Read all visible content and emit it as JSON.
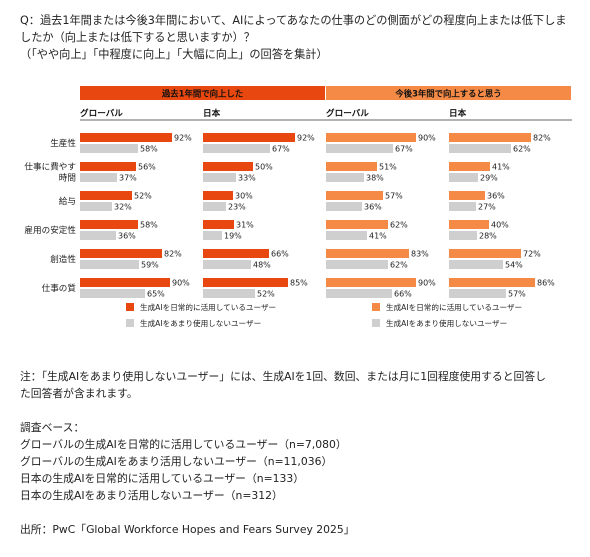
{
  "question": {
    "line1": "Q：過去1年間または今後3年間において、AIによってあなたの仕事のどの側面がどの程度向上または低下しま",
    "line2": "したか（向上または低下すると思いますか）？",
    "line3": "（「やや向上」「中程度に向上」「大幅に向上」の回答を集計）"
  },
  "colors": {
    "period_header_past": "#e8480f",
    "period_header_future": "#f58a46",
    "past_daily": "#e8480f",
    "future_daily": "#f58a46",
    "rare": "#cfcfcf"
  },
  "chart_data": {
    "type": "bar",
    "orientation": "horizontal",
    "categories": [
      "生産性",
      "仕事に費やす時間",
      "給与",
      "雇用の安定性",
      "創造性",
      "仕事の質"
    ],
    "category_labels": [
      [
        "生産性"
      ],
      [
        "仕事に費やす",
        "時間"
      ],
      [
        "給与"
      ],
      [
        "雇用の安定性"
      ],
      [
        "創造性"
      ],
      [
        "仕事の質"
      ]
    ],
    "value_unit": "%",
    "xlim": [
      0,
      100
    ],
    "periods": [
      {
        "label": "過去1年間で向上した",
        "panels": [
          {
            "region": "グローバル",
            "series": [
              {
                "name": "生成AIを日常的に活用しているユーザー",
                "values": [
                  92,
                  56,
                  52,
                  58,
                  82,
                  90
                ]
              },
              {
                "name": "生成AIをあまり使用しないユーザー",
                "values": [
                  58,
                  37,
                  32,
                  36,
                  59,
                  65
                ]
              }
            ]
          },
          {
            "region": "日本",
            "series": [
              {
                "name": "生成AIを日常的に活用しているユーザー",
                "values": [
                  92,
                  50,
                  30,
                  31,
                  66,
                  85
                ]
              },
              {
                "name": "生成AIをあまり使用しないユーザー",
                "values": [
                  67,
                  33,
                  23,
                  19,
                  48,
                  52
                ]
              }
            ]
          }
        ],
        "legend": [
          "生成AIを日常的に活用しているユーザー",
          "生成AIをあまり使用しないユーザー"
        ]
      },
      {
        "label": "今後3年間で向上すると思う",
        "panels": [
          {
            "region": "グローバル",
            "series": [
              {
                "name": "生成AIを日常的に活用しているユーザー",
                "values": [
                  90,
                  51,
                  57,
                  62,
                  83,
                  90
                ]
              },
              {
                "name": "生成AIをあまり使用しないユーザー",
                "values": [
                  67,
                  38,
                  36,
                  41,
                  62,
                  66
                ]
              }
            ]
          },
          {
            "region": "日本",
            "series": [
              {
                "name": "生成AIを日常的に活用しているユーザー",
                "values": [
                  82,
                  41,
                  36,
                  40,
                  72,
                  86
                ]
              },
              {
                "name": "生成AIをあまり使用しないユーザー",
                "values": [
                  62,
                  29,
                  27,
                  28,
                  54,
                  57
                ]
              }
            ]
          }
        ],
        "legend": [
          "生成AIを日常的に活用しているユーザー",
          "生成AIをあまり使用しないユーザー"
        ]
      }
    ]
  },
  "notes": {
    "note_line1": "注：「生成AIをあまり使用しないユーザー」には、生成AIを1回、数回、または月に1回程度使用すると回答し",
    "note_line2": "た回答者が含まれます。",
    "base_title": "調査ベース：",
    "base_lines": [
      "グローバルの生成AIを日常的に活用しているユーザー（n=7,080）",
      "グローバルの生成AIをあまり活用しないユーザー（n=11,036）",
      "日本の生成AIを日常的に活用しているユーザー（n=133）",
      "日本の生成AIをあまり活用しないユーザー（n=312）"
    ],
    "source": "出所：PwC「Global Workforce Hopes and Fears Survey 2025」"
  }
}
